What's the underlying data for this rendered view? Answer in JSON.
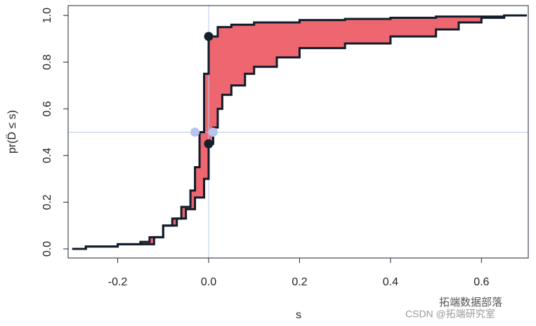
{
  "chart_data": {
    "type": "ecdf-difference",
    "xlabel": "s",
    "ylabel": "pr(D̈ ≤ s)",
    "xlim": [
      -0.309,
      0.703
    ],
    "ylim": [
      -0.039,
      1.042
    ],
    "xticks": [
      -0.2,
      {
        "value": 0,
        "label": "0.0"
      },
      0.2,
      0.4,
      0.6
    ],
    "yticks": [
      {
        "value": 0,
        "label": "0.0"
      },
      0.2,
      0.4,
      0.6,
      0.8,
      {
        "value": 1,
        "label": "1.0"
      }
    ],
    "fill_color": "#ee6670",
    "series": [
      {
        "color": "#111c2a",
        "x": [
          -0.3,
          -0.27,
          -0.2,
          -0.15,
          -0.13,
          -0.1,
          -0.08,
          -0.06,
          -0.04,
          -0.03,
          -0.02,
          -0.01,
          0,
          0.02,
          0.05,
          0.1,
          0.2,
          0.3,
          0.4,
          0.5,
          0.65,
          0.7
        ],
        "values": [
          0,
          0.01,
          0.02,
          0.03,
          0.05,
          0.1,
          0.13,
          0.18,
          0.25,
          0.35,
          0.5,
          0.75,
          0.91,
          0.95,
          0.96,
          0.97,
          0.98,
          0.985,
          0.99,
          0.995,
          1,
          1
        ]
      },
      {
        "color": "#111c2a",
        "x": [
          -0.3,
          -0.27,
          -0.2,
          -0.15,
          -0.12,
          -0.1,
          -0.07,
          -0.05,
          -0.03,
          -0.01,
          0,
          0.01,
          0.02,
          0.03,
          0.05,
          0.08,
          0.1,
          0.15,
          0.2,
          0.3,
          0.4,
          0.5,
          0.55,
          0.6,
          0.65,
          0.7
        ],
        "values": [
          0,
          0.01,
          0.02,
          0.02,
          0.05,
          0.1,
          0.13,
          0.17,
          0.22,
          0.3,
          0.45,
          0.52,
          0.6,
          0.66,
          0.7,
          0.75,
          0.78,
          0.82,
          0.86,
          0.88,
          0.91,
          0.94,
          0.97,
          0.99,
          1,
          1
        ]
      }
    ],
    "reference_lines": {
      "x": 0,
      "y": 0.5,
      "color": "#b8c9e8"
    },
    "points": [
      {
        "x": 0,
        "y": 0.91,
        "color": "#13202c"
      },
      {
        "x": 0,
        "y": 0.45,
        "color": "#13202c"
      },
      {
        "x": -0.03,
        "y": 0.5,
        "color": "#b8c4f0"
      },
      {
        "x": 0.01,
        "y": 0.5,
        "color": "#b8c4f0"
      }
    ],
    "watermarks": [
      "拓端数据部落",
      "CSDN @拓端研究室"
    ]
  }
}
